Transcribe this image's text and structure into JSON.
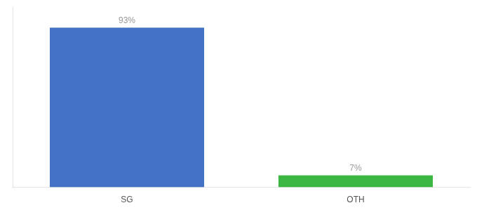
{
  "chart_data": {
    "type": "bar",
    "categories": [
      "SG",
      "OTH"
    ],
    "values": [
      93,
      7
    ],
    "value_labels": [
      "93%",
      "7%"
    ],
    "colors": [
      "#4472c4",
      "#3cb643"
    ],
    "ylim": [
      0,
      105
    ],
    "data_labels": true,
    "tick_labels": "x",
    "grid": false
  }
}
